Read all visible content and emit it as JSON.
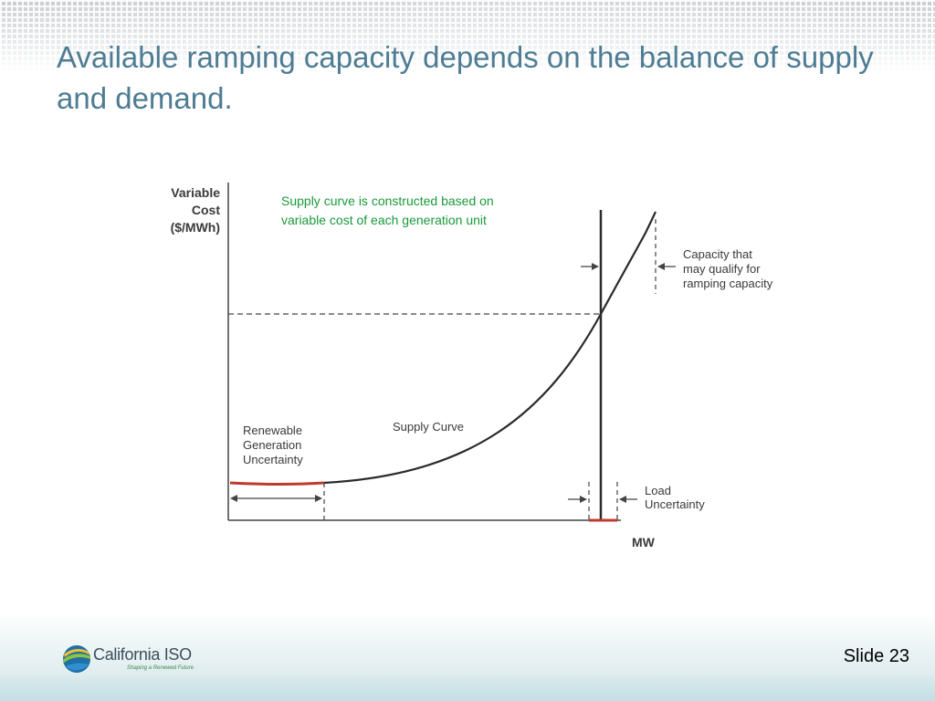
{
  "slide": {
    "title": "Available ramping capacity depends on the balance of supply and demand.",
    "slide_label": "Slide 23"
  },
  "diagram": {
    "y_axis_label": [
      "Variable",
      "Cost",
      "($/MWh)"
    ],
    "x_axis_label": "MW",
    "note": [
      "Supply curve is constructed based on",
      "variable cost of each generation unit"
    ],
    "curve_label": "Supply Curve",
    "renewable_label": [
      "Renewable",
      "Generation",
      "Uncertainty"
    ],
    "capacity_label": [
      "Capacity that",
      "may qualify for",
      "ramping capacity"
    ],
    "load_label": [
      "Load",
      "Uncertainty"
    ],
    "colors": {
      "curve": "#2b2b2b",
      "uncertainty": "#c0392b",
      "note": "#1a9a3a",
      "title": "#4e7c93"
    }
  },
  "footer": {
    "logo_name": "California ISO",
    "logo_tagline": "Shaping a Renewed Future"
  }
}
